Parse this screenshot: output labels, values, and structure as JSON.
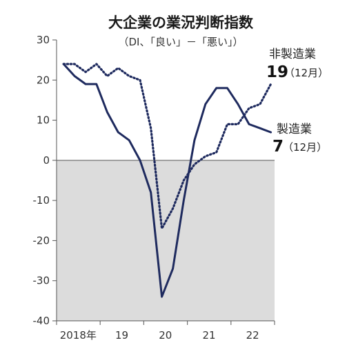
{
  "chart_data": {
    "type": "line",
    "title": "大企業の業況判断指数",
    "subtitle": "（DI、「良い」－「悪い」）",
    "ylim": [
      -40,
      30
    ],
    "y_ticks": [
      "30",
      "20",
      "10",
      "0",
      "-10",
      "-20",
      "-30",
      "-40"
    ],
    "x_ticks": [
      "2018年",
      "19",
      "20",
      "21",
      "22"
    ],
    "shade_below_zero": true,
    "colors": {
      "line": "#1e2a5e",
      "shade": "#dcdcdc"
    },
    "series": [
      {
        "name": "非製造業",
        "style": "dotted",
        "label_value": "19",
        "label_note": "（12月）",
        "x": [
          "2018-03",
          "2018-06",
          "2018-09",
          "2018-12",
          "2019-03",
          "2019-06",
          "2019-09",
          "2019-12",
          "2020-03",
          "2020-06",
          "2020-09",
          "2020-12",
          "2021-03",
          "2021-06",
          "2021-09",
          "2021-12",
          "2022-03",
          "2022-06",
          "2022-09",
          "2022-12"
        ],
        "values": [
          24,
          24,
          22,
          24,
          21,
          23,
          21,
          20,
          8,
          -17,
          -12,
          -5,
          -1,
          1,
          2,
          9,
          9,
          13,
          14,
          19
        ]
      },
      {
        "name": "製造業",
        "style": "solid",
        "label_value": "7",
        "label_note": "（12月）",
        "x": [
          "2018-03",
          "2018-06",
          "2018-09",
          "2018-12",
          "2019-03",
          "2019-06",
          "2019-09",
          "2019-12",
          "2020-03",
          "2020-06",
          "2020-09",
          "2020-12",
          "2021-03",
          "2021-06",
          "2021-09",
          "2021-12",
          "2022-03",
          "2022-06",
          "2022-09",
          "2022-12"
        ],
        "values": [
          24,
          21,
          19,
          19,
          12,
          7,
          5,
          0,
          -8,
          -34,
          -27,
          -10,
          5,
          14,
          18,
          18,
          14,
          9,
          8,
          7
        ]
      }
    ]
  }
}
